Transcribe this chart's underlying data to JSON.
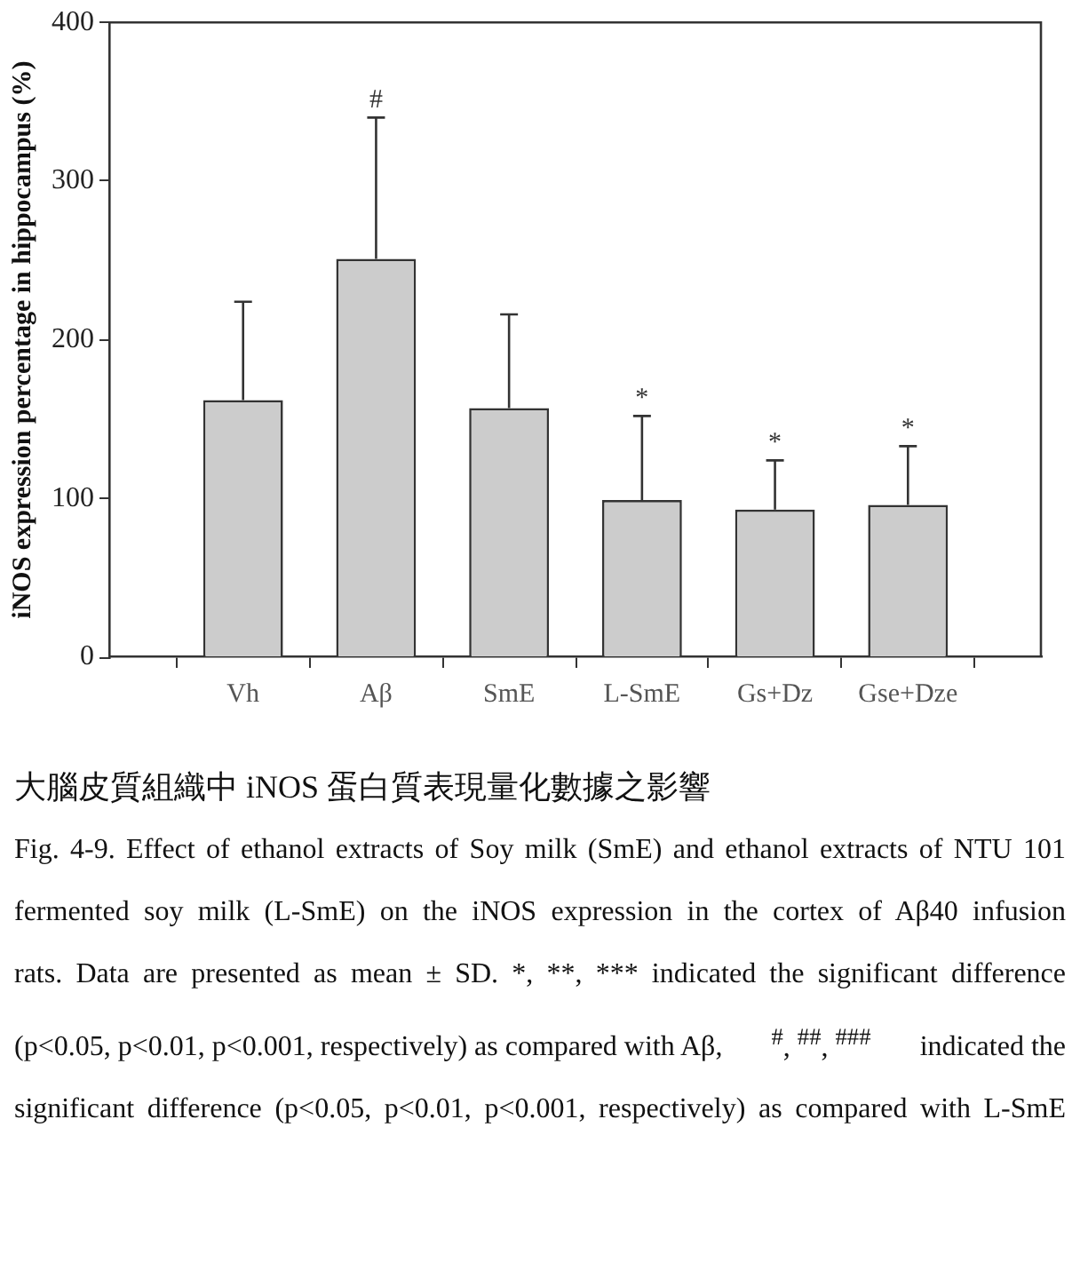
{
  "chart_data": {
    "type": "bar",
    "ylabel": "iNOS expression percentage in hippocampus (%)",
    "categories": [
      "Vh",
      "Aβ",
      "SmE",
      "L-SmE",
      "Gs+Dz",
      "Gse+Dze"
    ],
    "values": [
      162,
      251,
      157,
      99,
      93,
      96
    ],
    "color": "#cccccc",
    "errors": [
      [
        162,
        224
      ],
      [
        251,
        340
      ],
      [
        157,
        216
      ],
      [
        99,
        152
      ],
      [
        93,
        124
      ],
      [
        96,
        133
      ]
    ],
    "ylim": [
      0,
      400
    ],
    "yticks": [
      0,
      100,
      200,
      300,
      400
    ],
    "grid": false,
    "legend": false,
    "annotations": [
      {
        "text": "#",
        "x": "Aβ",
        "y": 340
      },
      {
        "text": "*",
        "x": "L-SmE",
        "y": 152
      },
      {
        "text": "*",
        "x": "Gs+Dz",
        "y": 124
      },
      {
        "text": "*",
        "x": "Gse+Dze",
        "y": 133
      },
      "大腦皮質組織中 iNOS 蛋白質表現量化數據之影響",
      "Fig. 4-9. Effect of ethanol extracts of Soy milk (SmE) and ethanol extracts of NTU 101",
      "fermented soy milk (L-SmE) on the iNOS expression in the cortex of Aβ40 infusion",
      "rats. Data are presented as mean ± SD. *, **, *** indicated the significant difference",
      "(p<0.05, p<0.01, p<0.001, respectively) as compared with Aβ,",
      "$^{#}$, $^{##}$, $^{###}$",
      "indicated the",
      "significant difference (p<0.05, p<0.01, p<0.001, respectively) as compared with L-SmE"
    ]
  }
}
